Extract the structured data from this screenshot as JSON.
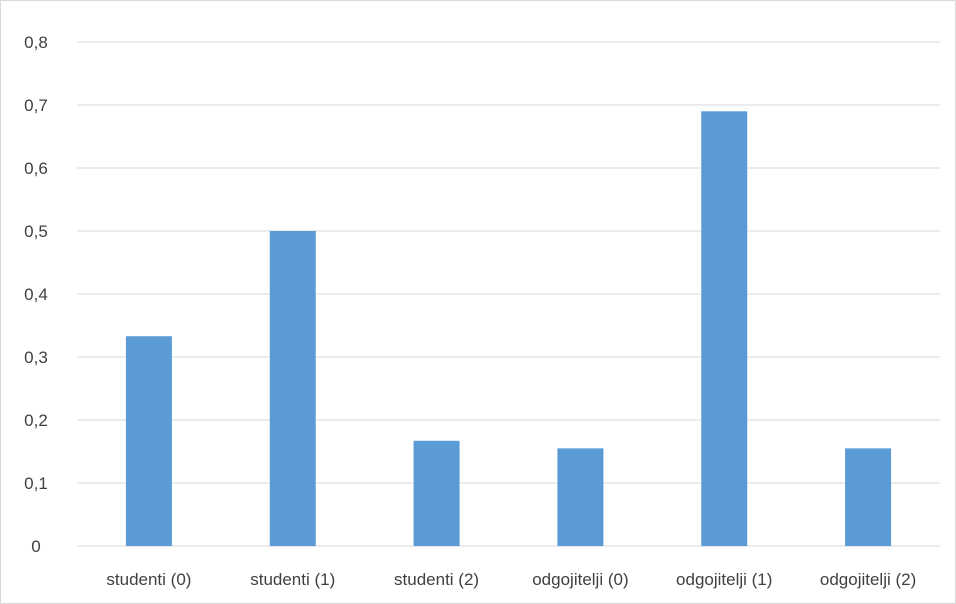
{
  "chart_data": {
    "type": "bar",
    "categories": [
      "studenti (0)",
      "studenti (1)",
      "studenti (2)",
      "odgojitelji (0)",
      "odgojitelji (1)",
      "odgojitelji (2)"
    ],
    "values": [
      0.333,
      0.5,
      0.167,
      0.155,
      0.69,
      0.155
    ],
    "ylim": [
      0,
      0.8
    ],
    "yticks": [
      "0",
      "0,1",
      "0,2",
      "0,3",
      "0,4",
      "0,5",
      "0,6",
      "0,7",
      "0,8"
    ],
    "grid": true,
    "legend": "none",
    "bar_color": "#5b9bd5",
    "grid_color": "#d9d9d9"
  }
}
